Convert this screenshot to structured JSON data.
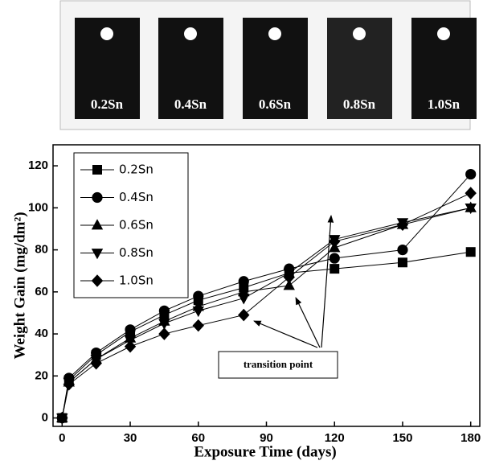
{
  "photo_labels": [
    "0.2Sn",
    "0.4Sn",
    "0.6Sn",
    "0.8Sn",
    "1.0Sn"
  ],
  "chart_data": {
    "type": "line",
    "xlabel": "Exposure Time (days)",
    "ylabel": "Weight Gain (mg/dm²)",
    "annotation": "transition point",
    "x": [
      0,
      3,
      15,
      30,
      45,
      60,
      80,
      100,
      120,
      150,
      180
    ],
    "series": [
      {
        "name": "0.2Sn",
        "color": "#000000",
        "marker": "square",
        "values": [
          0,
          18,
          30,
          41,
          49,
          56,
          62,
          69,
          71,
          74,
          79
        ]
      },
      {
        "name": "0.4Sn",
        "color": "#000000",
        "marker": "circle",
        "values": [
          0,
          19,
          31,
          42,
          51,
          58,
          65,
          71,
          76,
          80,
          116
        ]
      },
      {
        "name": "0.6Sn",
        "color": "#000000",
        "marker": "triangle-up",
        "values": [
          0,
          17,
          28,
          38,
          46,
          53,
          60,
          63,
          81,
          92,
          100
        ]
      },
      {
        "name": "0.8Sn",
        "color": "#000000",
        "marker": "triangle-down",
        "values": [
          0,
          17,
          28,
          37,
          45,
          51,
          57,
          69,
          85,
          93,
          100
        ]
      },
      {
        "name": "1.0Sn",
        "color": "#000000",
        "marker": "diamond",
        "values": [
          0,
          16,
          26,
          34,
          40,
          44,
          49,
          67,
          84,
          92,
          107
        ]
      }
    ],
    "xlim": [
      -4,
      184
    ],
    "ylim": [
      -4,
      130
    ],
    "xticks": [
      0,
      30,
      60,
      90,
      120,
      150,
      180
    ],
    "yticks": [
      0,
      20,
      40,
      60,
      80,
      100,
      120
    ],
    "legend": "upper left"
  }
}
